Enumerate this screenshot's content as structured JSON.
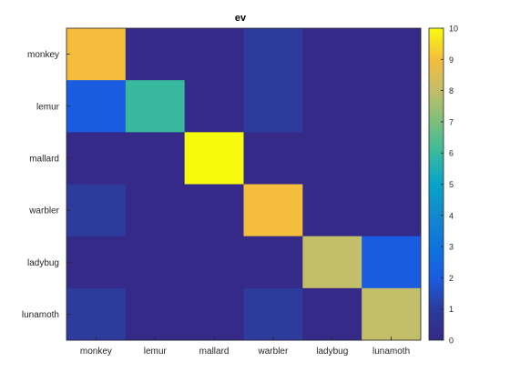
{
  "chart_data": {
    "type": "heatmap",
    "title": "ev",
    "xlabel": "",
    "ylabel": "",
    "x_categories": [
      "monkey",
      "lemur",
      "mallard",
      "warbler",
      "ladybug",
      "lunamoth"
    ],
    "y_categories": [
      "monkey",
      "lemur",
      "mallard",
      "warbler",
      "ladybug",
      "lunamoth"
    ],
    "values": [
      [
        9,
        0,
        0,
        1,
        0,
        0
      ],
      [
        2,
        6,
        0,
        1,
        0,
        0
      ],
      [
        0,
        0,
        10,
        0,
        0,
        0
      ],
      [
        1,
        0,
        0,
        9,
        0,
        0
      ],
      [
        0,
        0,
        0,
        0,
        8,
        2
      ],
      [
        1,
        0,
        0,
        1,
        0,
        8
      ]
    ],
    "colorbar": {
      "range": [
        0,
        10
      ],
      "ticks": [
        0,
        1,
        2,
        3,
        4,
        5,
        6,
        7,
        8,
        9,
        10
      ]
    },
    "colormap": "parula",
    "grid": false
  }
}
